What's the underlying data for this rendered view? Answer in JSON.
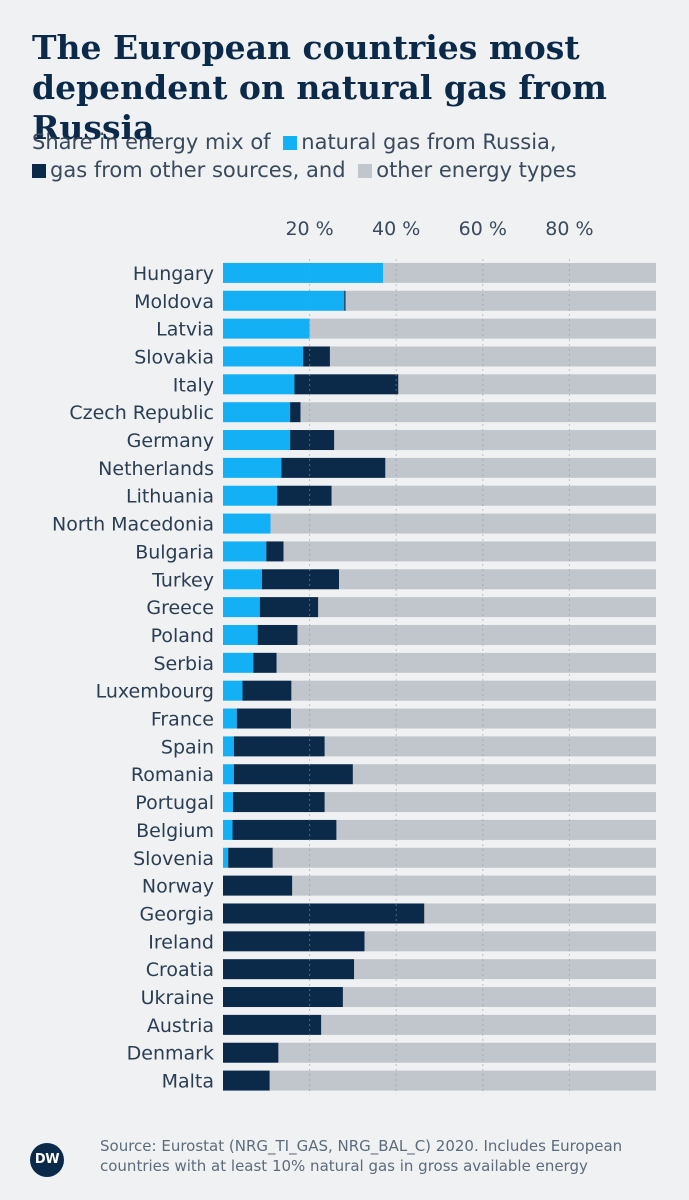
{
  "title": "The European countries most dependent on natural gas from Russia",
  "legend": {
    "prefix": "Share in energy mix of",
    "items": [
      {
        "label": "natural gas from Russia,",
        "color": "#13b0f5"
      },
      {
        "label": "gas from other sources, and",
        "color": "#0b2a4a"
      },
      {
        "label": "other energy types",
        "color": "#c1c6cc"
      }
    ]
  },
  "source": "Source: Eurostat (NRG_TI_GAS,  NRG_BAL_C) 2020. Includes European countries with at least 10% natural gas in gross available energy",
  "logo_text": "DW",
  "chart_data": {
    "type": "bar",
    "orientation": "horizontal",
    "stacked": true,
    "xlim": [
      0,
      100
    ],
    "ticks": [
      20,
      40,
      60,
      80
    ],
    "tick_labels": [
      "20 %",
      "40 %",
      "60 %",
      "80 %"
    ],
    "grid": true,
    "categories": [
      "Hungary",
      "Moldova",
      "Latvia",
      "Slovakia",
      "Italy",
      "Czech Republic",
      "Germany",
      "Netherlands",
      "Lithuania",
      "North Macedonia",
      "Bulgaria",
      "Turkey",
      "Greece",
      "Poland",
      "Serbia",
      "Luxembourg",
      "France",
      "Spain",
      "Romania",
      "Portugal",
      "Belgium",
      "Slovenia",
      "Norway",
      "Georgia",
      "Ireland",
      "Croatia",
      "Ukraine",
      "Austria",
      "Denmark",
      "Malta"
    ],
    "series": [
      {
        "name": "natural gas from Russia",
        "color": "#13b0f5",
        "values": [
          37,
          28,
          20,
          18.5,
          16.5,
          15.5,
          15.5,
          13.5,
          12.5,
          11,
          10,
          9,
          8.5,
          8,
          7,
          4.5,
          3.2,
          2.5,
          2.5,
          2.3,
          2.2,
          1.2,
          0,
          0,
          0,
          0,
          0,
          0,
          0,
          0
        ]
      },
      {
        "name": "gas from other sources",
        "color": "#0b2a4a",
        "values": [
          0,
          0.3,
          0,
          6.2,
          24,
          2.4,
          10.2,
          24,
          12.6,
          0,
          4,
          17.8,
          13.5,
          9.2,
          5.4,
          11.3,
          12.5,
          21,
          27.5,
          21.2,
          24,
          10.3,
          16,
          46.5,
          32.7,
          30.3,
          27.7,
          22.7,
          12.8,
          10.8
        ]
      },
      {
        "name": "other energy types",
        "color": "#c1c6cc",
        "values": [
          63,
          71.7,
          80,
          75.3,
          59.5,
          82.1,
          74.3,
          62.5,
          74.9,
          89,
          86,
          73.2,
          78,
          82.8,
          87.6,
          84.2,
          84.3,
          76.5,
          70,
          76.5,
          73.8,
          88.5,
          84,
          53.5,
          67.3,
          69.7,
          72.3,
          77.3,
          87.2,
          89.2
        ]
      }
    ]
  }
}
